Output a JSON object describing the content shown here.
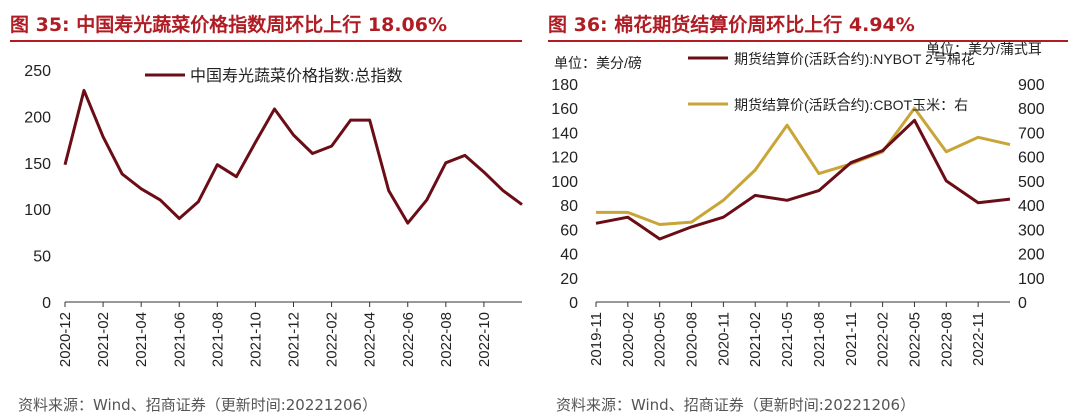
{
  "left": {
    "title": "图 35:  中国寿光蔬菜价格指数周环比上行 18.06%",
    "source": "资料来源：Wind、招商证券（更新时间:20221206）"
  },
  "right": {
    "title": "图 36:  棉花期货结算价周环比上行 4.94%",
    "source": "资料来源：Wind、招商证券（更新时间:20221206）"
  },
  "chart_data": [
    {
      "type": "line",
      "title": "中国寿光蔬菜价格指数周环比上行 18.06%",
      "ylim": [
        0,
        250
      ],
      "yticks": [
        0,
        50,
        100,
        150,
        200,
        250
      ],
      "tick_labels": [
        "2020-12",
        "2021-02",
        "2021-04",
        "2021-06",
        "2021-08",
        "2021-10",
        "2021-12",
        "2022-02",
        "2022-04",
        "2022-06",
        "2022-08",
        "2022-10"
      ],
      "x": [
        "2020-12",
        "2021-01",
        "2021-02",
        "2021-03",
        "2021-04",
        "2021-05",
        "2021-06",
        "2021-07",
        "2021-08",
        "2021-09",
        "2021-10",
        "2021-11",
        "2021-12",
        "2022-01",
        "2022-02",
        "2022-03",
        "2022-04",
        "2022-05",
        "2022-06",
        "2022-07",
        "2022-08",
        "2022-09",
        "2022-10",
        "2022-11",
        "2022-12"
      ],
      "series": [
        {
          "name": "中国寿光蔬菜价格指数:总指数",
          "color": "#6b0d16",
          "values": [
            148,
            228,
            178,
            138,
            122,
            110,
            90,
            108,
            148,
            135,
            172,
            208,
            180,
            160,
            168,
            196,
            196,
            120,
            85,
            110,
            150,
            158,
            140,
            120,
            105
          ]
        }
      ]
    },
    {
      "type": "line",
      "title": "棉花期货结算价周环比上行 4.94%",
      "y_left": {
        "unit": "单位：美分/磅",
        "ylim": [
          0,
          180
        ],
        "ticks": [
          0,
          20,
          40,
          60,
          80,
          100,
          120,
          140,
          160,
          180
        ]
      },
      "y_right": {
        "unit": "单位：美分/蒲式耳",
        "ylim": [
          0,
          900
        ],
        "ticks": [
          0,
          100,
          200,
          300,
          400,
          500,
          600,
          700,
          800,
          900
        ]
      },
      "tick_labels": [
        "2019-11",
        "2020-02",
        "2020-05",
        "2020-08",
        "2020-11",
        "2021-02",
        "2021-05",
        "2021-08",
        "2021-11",
        "2022-02",
        "2022-05",
        "2022-08",
        "2022-11"
      ],
      "x": [
        "2019-11",
        "2020-02",
        "2020-05",
        "2020-08",
        "2020-11",
        "2021-02",
        "2021-05",
        "2021-08",
        "2021-11",
        "2022-02",
        "2022-05",
        "2022-08",
        "2022-11",
        "2022-12"
      ],
      "series": [
        {
          "name": "期货结算价(活跃合约):NYBOT 2号棉花",
          "axis": "left",
          "color": "#6b0d16",
          "values": [
            65,
            70,
            52,
            62,
            70,
            88,
            84,
            92,
            115,
            125,
            150,
            100,
            82,
            85
          ]
        },
        {
          "name": "期货结算价(活跃合约):CBOT玉米：右",
          "axis": "right",
          "color": "#c8a536",
          "values": [
            370,
            370,
            320,
            330,
            420,
            545,
            730,
            530,
            570,
            620,
            800,
            620,
            680,
            650
          ]
        }
      ]
    }
  ]
}
